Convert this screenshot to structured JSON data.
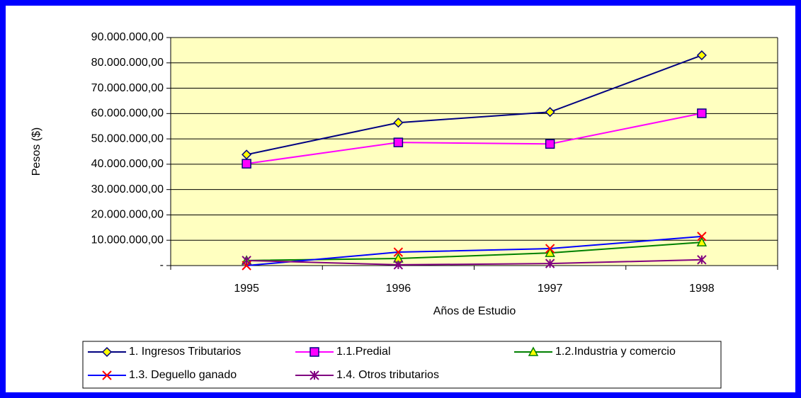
{
  "chart_data": {
    "type": "line",
    "xlabel": "Años de Estudio",
    "ylabel": "Pesos ($)",
    "categories": [
      "1995",
      "1996",
      "1997",
      "1998"
    ],
    "ylim": [
      0,
      90000000
    ],
    "yticks": [
      {
        "value": 0,
        "label": "-"
      },
      {
        "value": 10000000,
        "label": "10.000.000,00"
      },
      {
        "value": 20000000,
        "label": "20.000.000,00"
      },
      {
        "value": 30000000,
        "label": "30.000.000,00"
      },
      {
        "value": 40000000,
        "label": "40.000.000,00"
      },
      {
        "value": 50000000,
        "label": "50.000.000,00"
      },
      {
        "value": 60000000,
        "label": "60.000.000,00"
      },
      {
        "value": 70000000,
        "label": "70.000.000,00"
      },
      {
        "value": 80000000,
        "label": "80.000.000,00"
      },
      {
        "value": 90000000,
        "label": "90.000.000,00"
      }
    ],
    "grid": true,
    "plot_background": "#ffffc0",
    "series": [
      {
        "name": "1.  Ingresos Tributarios",
        "color": "#000080",
        "marker": "diamond",
        "marker_color": "#ffff00",
        "values": [
          43800000,
          56400000,
          60600000,
          83000000
        ]
      },
      {
        "name": "1.1.Predial",
        "color": "#ff00ff",
        "marker": "square",
        "marker_color": "#ff00ff",
        "values": [
          40200000,
          48600000,
          48000000,
          60100000
        ]
      },
      {
        "name": "1.2.Industria y comercio",
        "color": "#008000",
        "marker": "triangle",
        "marker_color": "#ffff00",
        "values": [
          2000000,
          2800000,
          5000000,
          9200000
        ]
      },
      {
        "name": "1.3. Deguello ganado",
        "color": "#0000ff",
        "marker": "x",
        "marker_color": "#ff0000",
        "values": [
          0,
          5300000,
          6700000,
          11500000
        ]
      },
      {
        "name": "1.4. Otros tributarios",
        "color": "#800080",
        "marker": "asterisk",
        "marker_color": "#800080",
        "values": [
          2000000,
          300000,
          800000,
          2300000
        ]
      }
    ]
  }
}
